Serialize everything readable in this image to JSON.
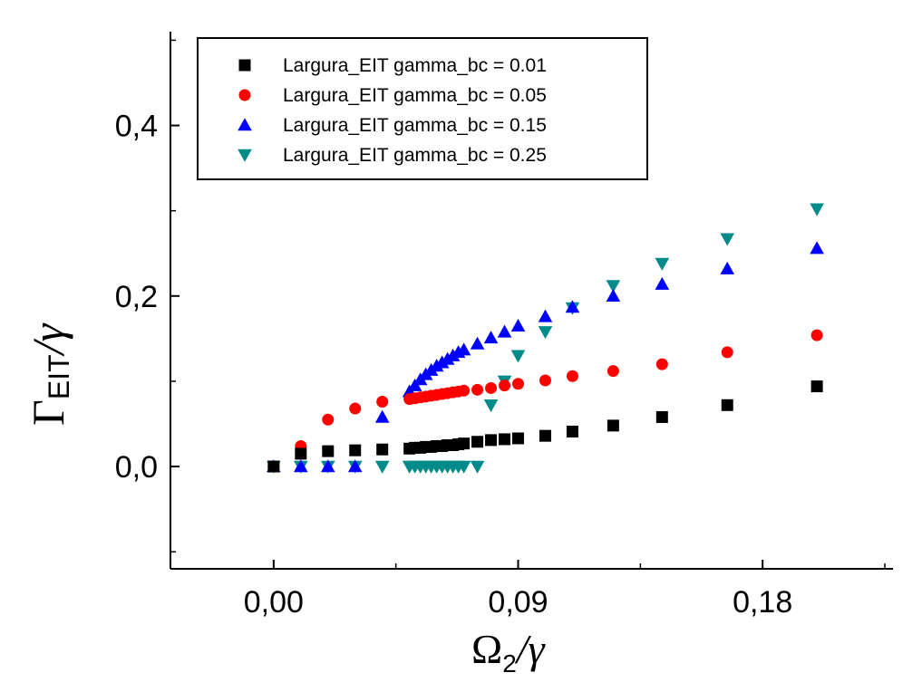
{
  "chart_data": {
    "type": "scatter",
    "title": "",
    "xlabel": "Ω2/γ",
    "ylabel": "ΓEIT/γ",
    "xlabel_parts": {
      "main": "Ω",
      "sub": "2",
      "suffix": "/γ"
    },
    "ylabel_parts": {
      "main": "Γ",
      "sub": "EIT",
      "suffix": "/γ"
    },
    "xlim": [
      -0.038,
      0.228
    ],
    "ylim": [
      -0.12,
      0.51
    ],
    "xticks": [
      0.0,
      0.09,
      0.18
    ],
    "xtick_labels": [
      "0,00",
      "0,09",
      "0,18"
    ],
    "yticks": [
      0.0,
      0.2,
      0.4
    ],
    "ytick_labels": [
      "0,0",
      "0,2",
      "0,4"
    ],
    "legend_position": "top-left",
    "grid": false,
    "series": [
      {
        "name": "Largura_EIT gamma_bc = 0.01",
        "marker": "square",
        "color": "#000000",
        "x": [
          0.0,
          0.01,
          0.02,
          0.03,
          0.04,
          0.05,
          0.052,
          0.054,
          0.056,
          0.058,
          0.06,
          0.062,
          0.064,
          0.066,
          0.068,
          0.07,
          0.075,
          0.08,
          0.085,
          0.09,
          0.1,
          0.11,
          0.125,
          0.143,
          0.167,
          0.2
        ],
        "y": [
          0.0,
          0.015,
          0.018,
          0.019,
          0.02,
          0.021,
          0.022,
          0.022,
          0.023,
          0.023,
          0.024,
          0.024,
          0.025,
          0.025,
          0.026,
          0.027,
          0.029,
          0.031,
          0.032,
          0.033,
          0.036,
          0.041,
          0.048,
          0.058,
          0.072,
          0.094
        ]
      },
      {
        "name": "Largura_EIT gamma_bc = 0.05",
        "marker": "circle",
        "color": "#ff0000",
        "x": [
          0.0,
          0.01,
          0.02,
          0.03,
          0.04,
          0.05,
          0.052,
          0.054,
          0.056,
          0.058,
          0.06,
          0.062,
          0.064,
          0.066,
          0.068,
          0.07,
          0.075,
          0.08,
          0.085,
          0.09,
          0.1,
          0.11,
          0.125,
          0.143,
          0.167,
          0.2
        ],
        "y": [
          0.0,
          0.024,
          0.055,
          0.068,
          0.076,
          0.079,
          0.08,
          0.081,
          0.082,
          0.083,
          0.084,
          0.085,
          0.086,
          0.087,
          0.088,
          0.089,
          0.09,
          0.092,
          0.095,
          0.097,
          0.101,
          0.106,
          0.112,
          0.12,
          0.134,
          0.154
        ]
      },
      {
        "name": "Largura_EIT gamma_bc = 0.15",
        "marker": "triangle-up",
        "color": "#0000ff",
        "x": [
          0.0,
          0.01,
          0.02,
          0.03,
          0.04,
          0.05,
          0.052,
          0.054,
          0.056,
          0.058,
          0.06,
          0.062,
          0.064,
          0.066,
          0.068,
          0.07,
          0.075,
          0.08,
          0.085,
          0.09,
          0.1,
          0.11,
          0.125,
          0.143,
          0.167,
          0.2
        ],
        "y": [
          0.0,
          0.0,
          0.0,
          0.0,
          0.058,
          0.088,
          0.095,
          0.102,
          0.108,
          0.113,
          0.118,
          0.122,
          0.126,
          0.13,
          0.134,
          0.137,
          0.144,
          0.151,
          0.158,
          0.165,
          0.176,
          0.187,
          0.2,
          0.214,
          0.232,
          0.256
        ]
      },
      {
        "name": "Largura_EIT gamma_bc = 0.25",
        "marker": "triangle-down",
        "color": "#008b8b",
        "x": [
          0.0,
          0.01,
          0.02,
          0.03,
          0.04,
          0.05,
          0.052,
          0.054,
          0.056,
          0.058,
          0.06,
          0.062,
          0.064,
          0.066,
          0.068,
          0.07,
          0.075,
          0.08,
          0.085,
          0.09,
          0.1,
          0.11,
          0.125,
          0.143,
          0.167,
          0.2
        ],
        "y": [
          0.0,
          0.0,
          0.0,
          0.0,
          0.0,
          0.0,
          0.0,
          0.0,
          0.0,
          0.0,
          0.0,
          0.0,
          0.0,
          0.0,
          0.0,
          0.0,
          0.0,
          0.072,
          0.1,
          0.13,
          0.158,
          0.186,
          0.212,
          0.238,
          0.267,
          0.302
        ]
      }
    ]
  }
}
